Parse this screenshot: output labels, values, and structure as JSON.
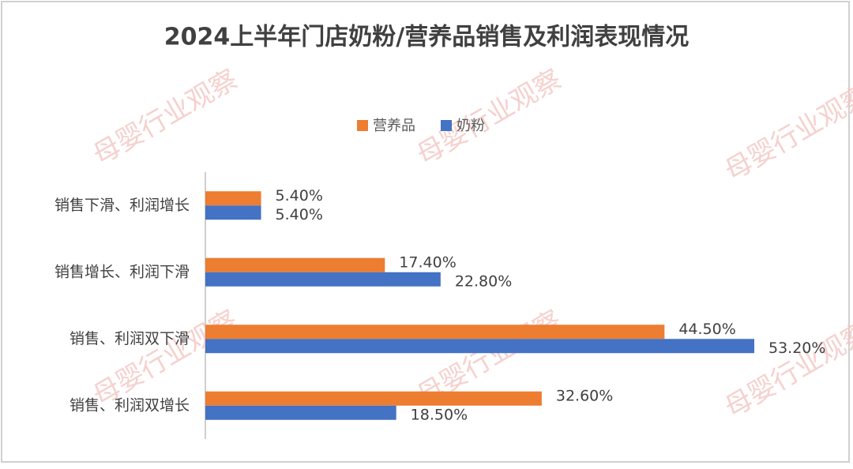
{
  "chart_data": {
    "type": "hbar",
    "title": "2024上半年门店奶粉/营养品销售及利润表现情况",
    "watermark": "母婴行业观察",
    "categories": [
      "销售下滑、利润增长",
      "销售增长、利润下滑",
      "销售、利润双下滑",
      "销售、利润双增长"
    ],
    "series": [
      {
        "name": "营养品",
        "color": "#ed7d31",
        "values": [
          5.4,
          17.4,
          44.5,
          32.6
        ],
        "value_labels": [
          "5.40%",
          "17.40%",
          "44.50%",
          "32.60%"
        ]
      },
      {
        "name": "奶粉",
        "color": "#4472c4",
        "values": [
          5.4,
          22.8,
          53.2,
          18.5
        ],
        "value_labels": [
          "5.40%",
          "22.80%",
          "53.20%",
          "18.50%"
        ]
      }
    ],
    "legend": "top"
  }
}
